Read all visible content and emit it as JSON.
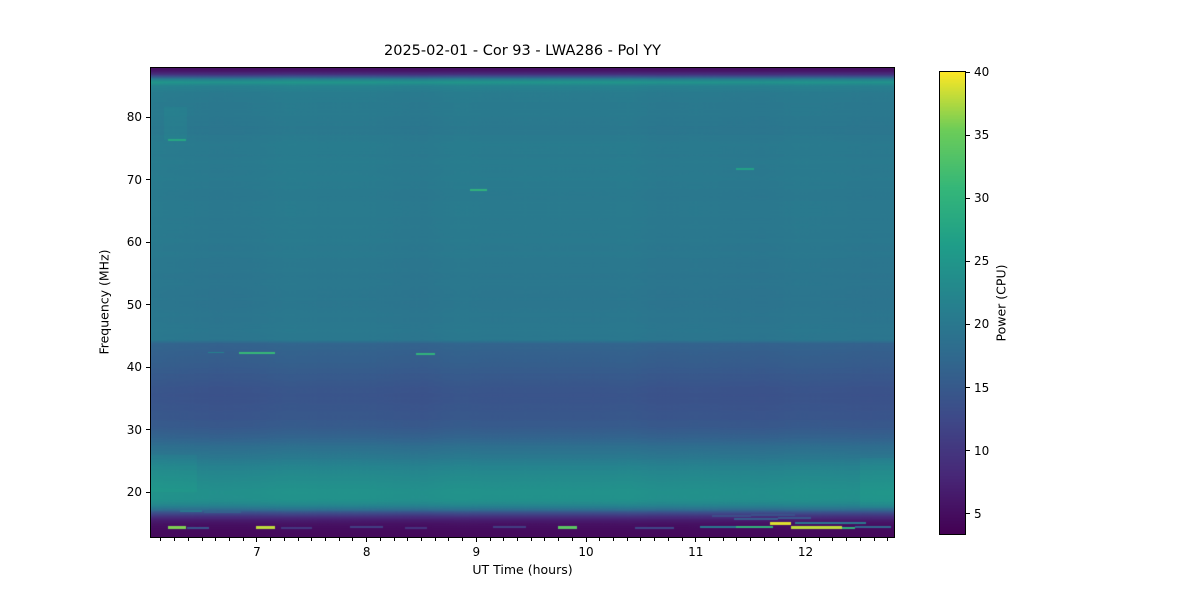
{
  "chart_data": {
    "type": "heatmap",
    "title": "2025-02-01 - Cor 93 - LWA286 - Pol YY",
    "xlabel": "UT Time (hours)",
    "ylabel": "Frequency (MHz)",
    "colorbar_label": "Power (CPU)",
    "colormap": "viridis",
    "legend_position": "right-colorbar",
    "grid": false,
    "x_axis": {
      "min": 6.034,
      "max": 12.807,
      "ticks": [
        7,
        8,
        9,
        10,
        11,
        12
      ],
      "minor_step": 0.125
    },
    "y_axis": {
      "min": 12.85,
      "max": 87.9,
      "ticks": [
        20,
        30,
        40,
        50,
        60,
        70,
        80
      ]
    },
    "color_axis": {
      "min": 3.4,
      "max": 40,
      "ticks": [
        5,
        10,
        15,
        20,
        25,
        30,
        35,
        40
      ]
    },
    "spectrum_profile": {
      "note": "time-averaged power (CPU) vs frequency (MHz); spectrum is nearly constant in time",
      "points": [
        [
          13.0,
          4.4
        ],
        [
          13.6,
          4.5
        ],
        [
          14.2,
          4.7
        ],
        [
          14.9,
          5.3
        ],
        [
          15.5,
          6.5
        ],
        [
          16.1,
          9.0
        ],
        [
          16.7,
          13.0
        ],
        [
          17.2,
          18.0
        ],
        [
          17.9,
          22.0
        ],
        [
          18.6,
          23.8
        ],
        [
          19.8,
          24.3
        ],
        [
          21.0,
          23.8
        ],
        [
          22.2,
          23.2
        ],
        [
          23.2,
          22.6
        ],
        [
          24.5,
          21.4
        ],
        [
          26.0,
          19.6
        ],
        [
          27.2,
          18.4
        ],
        [
          28.5,
          16.8
        ],
        [
          29.5,
          15.8
        ],
        [
          31.0,
          14.8
        ],
        [
          33.0,
          14.2
        ],
        [
          35.0,
          14.0
        ],
        [
          36.5,
          14.2
        ],
        [
          38.0,
          14.6
        ],
        [
          40.0,
          15.3
        ],
        [
          42.0,
          15.9
        ],
        [
          43.8,
          16.5
        ],
        [
          44.3,
          19.6
        ],
        [
          46.0,
          19.9
        ],
        [
          48.0,
          19.7
        ],
        [
          50.0,
          19.5
        ],
        [
          52.0,
          19.7
        ],
        [
          55.0,
          19.8
        ],
        [
          58.0,
          20.0
        ],
        [
          61.0,
          20.1
        ],
        [
          64.0,
          20.3
        ],
        [
          67.0,
          20.1
        ],
        [
          70.0,
          20.4
        ],
        [
          72.0,
          20.5
        ],
        [
          74.0,
          20.3
        ],
        [
          76.0,
          20.5
        ],
        [
          77.5,
          19.9
        ],
        [
          79.0,
          20.0
        ],
        [
          80.5,
          20.2
        ],
        [
          82.0,
          20.3
        ],
        [
          84.0,
          20.6
        ],
        [
          85.0,
          21.6
        ],
        [
          85.6,
          24.8
        ],
        [
          86.1,
          21.0
        ],
        [
          86.5,
          14.0
        ],
        [
          86.9,
          9.0
        ],
        [
          87.4,
          6.0
        ],
        [
          88.0,
          4.6
        ]
      ]
    },
    "features": [
      {
        "t0": 6.19,
        "t1": 6.35,
        "f": 76.4,
        "df": 0.25,
        "p": 28
      },
      {
        "t0": 6.55,
        "t1": 6.7,
        "f": 42.3,
        "df": 0.2,
        "p": 21.5
      },
      {
        "t0": 6.84,
        "t1": 7.16,
        "f": 42.3,
        "df": 0.3,
        "p": 31
      },
      {
        "t0": 8.45,
        "t1": 8.62,
        "f": 42.2,
        "df": 0.3,
        "p": 30
      },
      {
        "t0": 8.94,
        "t1": 9.1,
        "f": 68.4,
        "df": 0.3,
        "p": 30
      },
      {
        "t0": 11.37,
        "t1": 11.53,
        "f": 71.7,
        "df": 0.25,
        "p": 27
      },
      {
        "t0": 6.3,
        "t1": 6.5,
        "f": 17.0,
        "df": 0.3,
        "p": 20
      },
      {
        "t0": 6.52,
        "t1": 6.85,
        "f": 16.9,
        "df": 0.25,
        "p": 16
      },
      {
        "t0": 6.19,
        "t1": 6.35,
        "f": 14.35,
        "df": 0.45,
        "p": 36
      },
      {
        "t0": 6.36,
        "t1": 6.56,
        "f": 14.3,
        "df": 0.3,
        "p": 14
      },
      {
        "t0": 6.99,
        "t1": 7.16,
        "f": 14.35,
        "df": 0.45,
        "p": 38
      },
      {
        "t0": 7.22,
        "t1": 7.5,
        "f": 14.3,
        "df": 0.25,
        "p": 10
      },
      {
        "t0": 7.85,
        "t1": 8.15,
        "f": 14.4,
        "df": 0.3,
        "p": 11
      },
      {
        "t0": 8.35,
        "t1": 8.55,
        "f": 14.3,
        "df": 0.25,
        "p": 9.5
      },
      {
        "t0": 9.15,
        "t1": 9.45,
        "f": 14.4,
        "df": 0.3,
        "p": 11
      },
      {
        "t0": 9.74,
        "t1": 9.92,
        "f": 14.35,
        "df": 0.45,
        "p": 34
      },
      {
        "t0": 10.3,
        "t1": 10.75,
        "f": 16.6,
        "df": 0.35,
        "p": 11
      },
      {
        "t0": 10.45,
        "t1": 10.8,
        "f": 14.35,
        "df": 0.3,
        "p": 12
      },
      {
        "t0": 11.04,
        "t1": 11.37,
        "f": 14.4,
        "df": 0.35,
        "p": 20
      },
      {
        "t0": 11.37,
        "t1": 11.7,
        "f": 14.4,
        "df": 0.4,
        "p": 30
      },
      {
        "t0": 11.15,
        "t1": 11.5,
        "f": 16.2,
        "df": 0.3,
        "p": 13
      },
      {
        "t0": 11.35,
        "t1": 11.75,
        "f": 15.75,
        "df": 0.3,
        "p": 15
      },
      {
        "t0": 11.5,
        "t1": 11.9,
        "f": 16.35,
        "df": 0.25,
        "p": 13.5
      },
      {
        "t0": 11.75,
        "t1": 12.05,
        "f": 15.9,
        "df": 0.25,
        "p": 14
      },
      {
        "t0": 11.68,
        "t1": 11.87,
        "f": 15.05,
        "df": 0.55,
        "p": 39
      },
      {
        "t0": 11.87,
        "t1": 12.33,
        "f": 14.3,
        "df": 0.5,
        "p": 38
      },
      {
        "t0": 12.33,
        "t1": 12.45,
        "f": 14.3,
        "df": 0.35,
        "p": 30
      },
      {
        "t0": 11.9,
        "t1": 12.55,
        "f": 15.05,
        "df": 0.3,
        "p": 20
      },
      {
        "t0": 12.45,
        "t1": 12.78,
        "f": 14.45,
        "df": 0.3,
        "p": 17
      }
    ],
    "patches": [
      {
        "t0": 6.15,
        "t1": 6.36,
        "f0": 76.3,
        "f1": 81.6,
        "dp": 0.9
      },
      {
        "t0": 12.5,
        "t1": 12.81,
        "f0": 17.5,
        "f1": 25.5,
        "dp": 1.0
      },
      {
        "t0": 6.03,
        "t1": 6.45,
        "f0": 20.0,
        "f1": 26.0,
        "dp": 0.8
      }
    ]
  },
  "colors": {
    "background": "#ffffff",
    "axis": "#000000",
    "viridis_stops": [
      [
        68,
        1,
        84
      ],
      [
        72,
        40,
        120
      ],
      [
        62,
        74,
        137
      ],
      [
        49,
        104,
        142
      ],
      [
        38,
        130,
        142
      ],
      [
        31,
        158,
        137
      ],
      [
        53,
        183,
        121
      ],
      [
        109,
        205,
        89
      ],
      [
        253,
        231,
        37
      ]
    ]
  }
}
